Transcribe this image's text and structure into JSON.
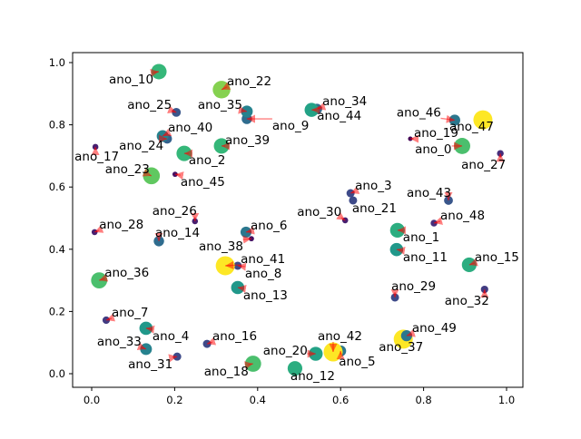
{
  "chart_data": {
    "type": "scatter",
    "title": "",
    "xlabel": "",
    "ylabel": "",
    "xlim": [
      -0.046,
      1.04
    ],
    "ylim": [
      -0.044,
      1.032
    ],
    "xticks": [
      "0.0",
      "0.2",
      "0.4",
      "0.6",
      "0.8",
      "1.0"
    ],
    "yticks": [
      "0.0",
      "0.2",
      "0.4",
      "0.6",
      "0.8",
      "1.0"
    ],
    "grid": false,
    "colormap": "viridis",
    "annotation_arrow_color": "#ff0000",
    "points": [
      {
        "label": "ano_0",
        "x": 0.893,
        "y": 0.732,
        "s": 0.8
      },
      {
        "label": "ano_1",
        "x": 0.737,
        "y": 0.461,
        "s": 0.7
      },
      {
        "label": "ano_2",
        "x": 0.223,
        "y": 0.708,
        "s": 0.75
      },
      {
        "label": "ano_3",
        "x": 0.624,
        "y": 0.58,
        "s": 0.25
      },
      {
        "label": "ano_4",
        "x": 0.131,
        "y": 0.146,
        "s": 0.6
      },
      {
        "label": "ano_5",
        "x": 0.6,
        "y": 0.073,
        "s": 0.45
      },
      {
        "label": "ano_6",
        "x": 0.372,
        "y": 0.455,
        "s": 0.45
      },
      {
        "label": "ano_7",
        "x": 0.035,
        "y": 0.172,
        "s": 0.2
      },
      {
        "label": "ano_8",
        "x": 0.352,
        "y": 0.347,
        "s": 0.25
      },
      {
        "label": "ano_9",
        "x": 0.374,
        "y": 0.819,
        "s": 0.4
      },
      {
        "label": "ano_10",
        "x": 0.162,
        "y": 0.971,
        "s": 0.75
      },
      {
        "label": "ano_11",
        "x": 0.735,
        "y": 0.399,
        "s": 0.6
      },
      {
        "label": "ano_12",
        "x": 0.49,
        "y": 0.017,
        "s": 0.7
      },
      {
        "label": "ano_13",
        "x": 0.352,
        "y": 0.277,
        "s": 0.6
      },
      {
        "label": "ano_14",
        "x": 0.162,
        "y": 0.426,
        "s": 0.4
      },
      {
        "label": "ano_15",
        "x": 0.91,
        "y": 0.35,
        "s": 0.7
      },
      {
        "label": "ano_16",
        "x": 0.278,
        "y": 0.096,
        "s": 0.25
      },
      {
        "label": "ano_17",
        "x": 0.009,
        "y": 0.729,
        "s": 0.1
      },
      {
        "label": "ano_18",
        "x": 0.389,
        "y": 0.032,
        "s": 0.8
      },
      {
        "label": "ano_19",
        "x": 0.768,
        "y": 0.755,
        "s": 0.0
      },
      {
        "label": "ano_20",
        "x": 0.54,
        "y": 0.064,
        "s": 0.65
      },
      {
        "label": "ano_21",
        "x": 0.63,
        "y": 0.557,
        "s": 0.25
      },
      {
        "label": "ano_22",
        "x": 0.313,
        "y": 0.913,
        "s": 0.9
      },
      {
        "label": "ano_23",
        "x": 0.144,
        "y": 0.636,
        "s": 0.85
      },
      {
        "label": "ano_24",
        "x": 0.182,
        "y": 0.755,
        "s": 0.35
      },
      {
        "label": "ano_25",
        "x": 0.204,
        "y": 0.84,
        "s": 0.3
      },
      {
        "label": "ano_26",
        "x": 0.249,
        "y": 0.49,
        "s": 0.1
      },
      {
        "label": "ano_27",
        "x": 0.985,
        "y": 0.708,
        "s": 0.15
      },
      {
        "label": "ano_28",
        "x": 0.007,
        "y": 0.455,
        "s": 0.1
      },
      {
        "label": "ano_29",
        "x": 0.731,
        "y": 0.245,
        "s": 0.25
      },
      {
        "label": "ano_30",
        "x": 0.611,
        "y": 0.493,
        "s": 0.1
      },
      {
        "label": "ano_31",
        "x": 0.206,
        "y": 0.055,
        "s": 0.25
      },
      {
        "label": "ano_32",
        "x": 0.947,
        "y": 0.271,
        "s": 0.2
      },
      {
        "label": "ano_33",
        "x": 0.131,
        "y": 0.079,
        "s": 0.5
      },
      {
        "label": "ano_34",
        "x": 0.543,
        "y": 0.851,
        "s": 0.4
      },
      {
        "label": "ano_35",
        "x": 0.374,
        "y": 0.843,
        "s": 0.5
      },
      {
        "label": "ano_36",
        "x": 0.018,
        "y": 0.3,
        "s": 0.8
      },
      {
        "label": "ano_37",
        "x": 0.751,
        "y": 0.111,
        "s": 1.0
      },
      {
        "label": "ano_38",
        "x": 0.385,
        "y": 0.434,
        "s": 0.05
      },
      {
        "label": "ano_39",
        "x": 0.313,
        "y": 0.732,
        "s": 0.75
      },
      {
        "label": "ano_40",
        "x": 0.171,
        "y": 0.764,
        "s": 0.5
      },
      {
        "label": "ano_41",
        "x": 0.322,
        "y": 0.347,
        "s": 1.0
      },
      {
        "label": "ano_42",
        "x": 0.582,
        "y": 0.07,
        "s": 1.0
      },
      {
        "label": "ano_43",
        "x": 0.86,
        "y": 0.557,
        "s": 0.3
      },
      {
        "label": "ano_44",
        "x": 0.53,
        "y": 0.848,
        "s": 0.65
      },
      {
        "label": "ano_45",
        "x": 0.201,
        "y": 0.641,
        "s": 0.05
      },
      {
        "label": "ano_46",
        "x": 0.875,
        "y": 0.815,
        "s": 0.45
      },
      {
        "label": "ano_47",
        "x": 0.943,
        "y": 0.816,
        "s": 1.0
      },
      {
        "label": "ano_48",
        "x": 0.825,
        "y": 0.484,
        "s": 0.15
      },
      {
        "label": "ano_49",
        "x": 0.759,
        "y": 0.122,
        "s": 0.45
      }
    ]
  }
}
